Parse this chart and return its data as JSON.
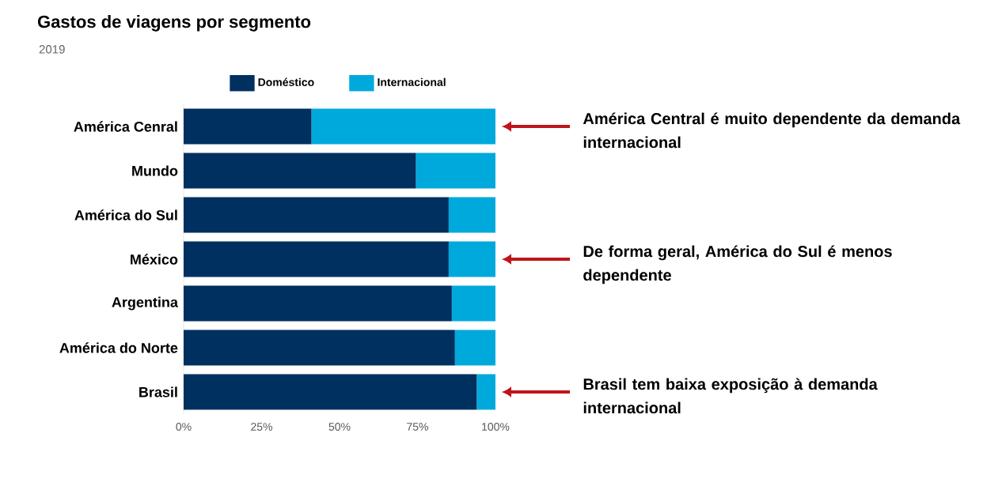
{
  "chart_data": {
    "type": "bar",
    "orientation": "horizontal",
    "stacked": true,
    "title": "Gastos de viagens por segmento",
    "subtitle": "2019",
    "categories": [
      "América Cenral",
      "Mundo",
      "América do Sul",
      "México",
      "Argentina",
      "América do Norte",
      "Brasil"
    ],
    "series": [
      {
        "name": "Doméstico",
        "color": "#00305f",
        "values": [
          41,
          74.5,
          85,
          85,
          86,
          87,
          94
        ]
      },
      {
        "name": "Internacional",
        "color": "#00a9dc",
        "values": [
          59,
          25.5,
          15,
          15,
          14,
          13,
          6
        ]
      }
    ],
    "xlim": [
      0,
      100
    ],
    "xticks": [
      {
        "value": 0,
        "label": "0%"
      },
      {
        "value": 25,
        "label": "25%"
      },
      {
        "value": 50,
        "label": "50%"
      },
      {
        "value": 75,
        "label": "75%"
      },
      {
        "value": 100,
        "label": "100%"
      }
    ],
    "legend": "top",
    "annotations": [
      "América Central é muito dependente da demanda internacional",
      "De forma geral, América do Sul é menos dependente",
      "Brasil tem baixa exposição à demanda internacional"
    ]
  }
}
